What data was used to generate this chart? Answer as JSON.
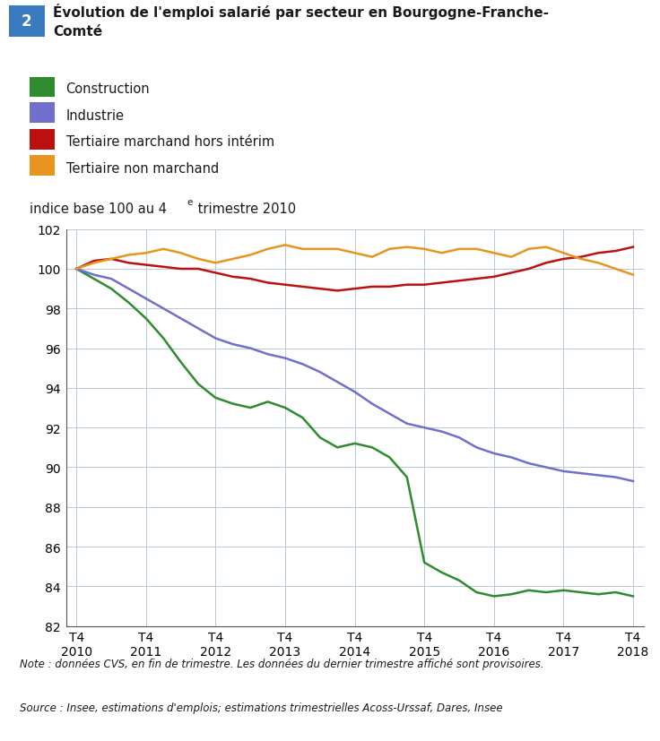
{
  "title_number": "2",
  "title_text": "Évolution de l'emploi salarié par secteur en Bourgogne-Franche-\nComté",
  "background_color": "#ffffff",
  "header_bg_color": "#cde0f0",
  "legend_entries": [
    {
      "label": "Construction",
      "color": "#2e8b2e"
    },
    {
      "label": "Industrie",
      "color": "#7070cc"
    },
    {
      "label": "Tertiaire marchand hors intérim",
      "color": "#bb1111"
    },
    {
      "label": "Tertiaire non marchand",
      "color": "#e89520"
    }
  ],
  "x_labels": [
    "T4\n2010",
    "T4\n2011",
    "T4\n2012",
    "T4\n2013",
    "T4\n2014",
    "T4\n2015",
    "T4\n2016",
    "T4\n2017",
    "T4\n2018"
  ],
  "n_points": 33,
  "ylim": [
    82,
    102
  ],
  "yticks": [
    82,
    84,
    86,
    88,
    90,
    92,
    94,
    96,
    98,
    100,
    102
  ],
  "note_text": "Note : données CVS, en fin de trimestre. Les données du dernier trimestre affiché sont provisoires.",
  "source_text": "Source : Insee, estimations d'emplois; estimations trimestrielles Acoss-Urssaf, Dares, Insee",
  "construction": [
    100.0,
    99.5,
    99.0,
    98.3,
    97.5,
    96.5,
    95.3,
    94.2,
    93.5,
    93.2,
    93.0,
    93.3,
    93.0,
    92.5,
    91.5,
    91.0,
    91.2,
    91.0,
    90.5,
    89.5,
    85.2,
    84.7,
    84.3,
    83.7,
    83.5,
    83.6,
    83.8,
    83.7,
    83.8,
    83.7,
    83.6,
    83.7,
    83.5
  ],
  "industrie": [
    100.0,
    99.7,
    99.5,
    99.0,
    98.5,
    98.0,
    97.5,
    97.0,
    96.5,
    96.2,
    96.0,
    95.7,
    95.5,
    95.2,
    94.8,
    94.3,
    93.8,
    93.2,
    92.7,
    92.2,
    92.0,
    91.8,
    91.5,
    91.0,
    90.7,
    90.5,
    90.2,
    90.0,
    89.8,
    89.7,
    89.6,
    89.5,
    89.3
  ],
  "tertiaire_marchand": [
    100.0,
    100.4,
    100.5,
    100.3,
    100.2,
    100.1,
    100.0,
    100.0,
    99.8,
    99.6,
    99.5,
    99.3,
    99.2,
    99.1,
    99.0,
    98.9,
    99.0,
    99.1,
    99.1,
    99.2,
    99.2,
    99.3,
    99.4,
    99.5,
    99.6,
    99.8,
    100.0,
    100.3,
    100.5,
    100.6,
    100.8,
    100.9,
    101.1
  ],
  "tertiaire_non_marchand": [
    100.0,
    100.3,
    100.5,
    100.7,
    100.8,
    101.0,
    100.8,
    100.5,
    100.3,
    100.5,
    100.7,
    101.0,
    101.2,
    101.0,
    101.0,
    101.0,
    100.8,
    100.6,
    101.0,
    101.1,
    101.0,
    100.8,
    101.0,
    101.0,
    100.8,
    100.6,
    101.0,
    101.1,
    100.8,
    100.5,
    100.3,
    100.0,
    99.7
  ]
}
